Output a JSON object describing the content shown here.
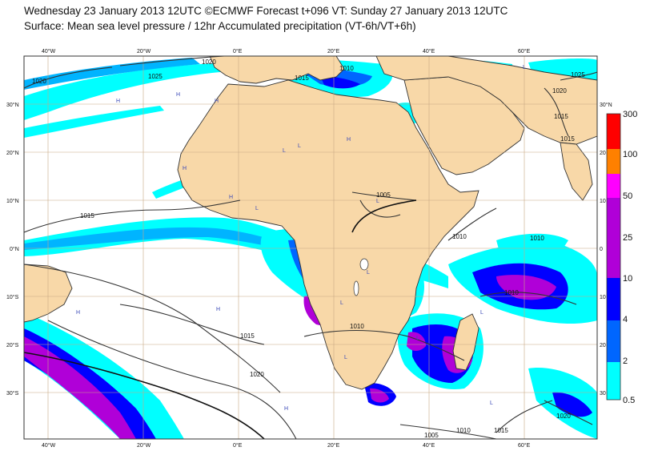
{
  "title": {
    "line1": "Wednesday 23 January 2013 12UTC ©ECMWF Forecast t+096 VT: Sunday 27 January 2013 12UTC",
    "line2": "Surface: Mean sea level pressure / 12hr Accumulated precipitation (VT-6h/VT+6h)"
  },
  "map": {
    "lon_labels": [
      "40°W",
      "20°W",
      "0°E",
      "20°E",
      "40°E",
      "60°E"
    ],
    "lat_labels_left": [
      "30°N",
      "20°N",
      "10°N",
      "0°N",
      "10°S",
      "20°S",
      "30°S"
    ],
    "lat_labels_right": [
      "30°N",
      "20",
      "10",
      "0",
      "10",
      "20",
      "30"
    ],
    "isobar_labels": [
      {
        "text": "1020"
      },
      {
        "text": "1025"
      },
      {
        "text": "1020"
      },
      {
        "text": "1015"
      },
      {
        "text": "1010"
      },
      {
        "text": "1025"
      },
      {
        "text": "1020"
      },
      {
        "text": "1015"
      },
      {
        "text": "1015"
      },
      {
        "text": "1005"
      },
      {
        "text": "1015"
      },
      {
        "text": "1010"
      },
      {
        "text": "1010"
      },
      {
        "text": "1010"
      },
      {
        "text": "1010"
      },
      {
        "text": "1015"
      },
      {
        "text": "1020"
      },
      {
        "text": "1015"
      },
      {
        "text": "1010"
      },
      {
        "text": "1005"
      },
      {
        "text": "1020"
      }
    ],
    "hl_markers": [
      "H",
      "H",
      "H",
      "L",
      "L",
      "H",
      "H",
      "L",
      "H",
      "L",
      "L",
      "L",
      "H",
      "L",
      "L",
      "L",
      "H",
      "H",
      "L",
      "L"
    ],
    "colors": {
      "land": "#f8d8a8",
      "ocean": "#ffffff",
      "coast": "#333333",
      "isobar": "#333333"
    }
  },
  "legend": {
    "levels": [
      "300",
      "100",
      "50",
      "25",
      "10",
      "4",
      "2",
      "0.5"
    ],
    "colors": [
      "#ff0000",
      "#ff8000",
      "#ff00ff",
      "#b000d8",
      "#0000ff",
      "#0066ff",
      "#00b4ff",
      "#00ffff"
    ]
  }
}
